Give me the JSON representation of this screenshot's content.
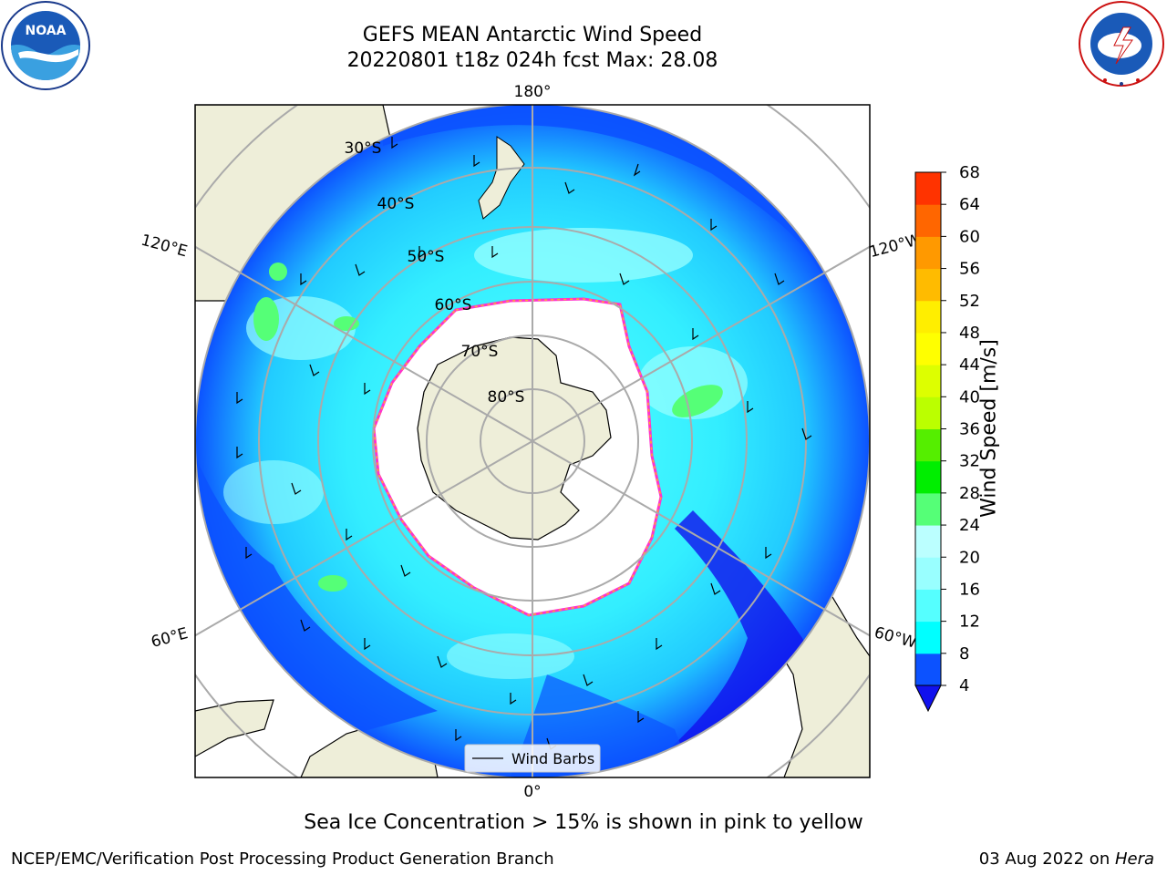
{
  "title": {
    "line1": "GEFS MEAN Antarctic Wind Speed",
    "line2": "20220801 t18z 024h fcst   Max: 28.08"
  },
  "logos": {
    "left": {
      "icon": "noaa-logo-icon",
      "text": "NOAA",
      "ring_text": "NATIONAL OCEANIC AND ATMOSPHERIC ADMINISTRATION · U.S. DEPARTMENT OF COMMERCE"
    },
    "right": {
      "icon": "nws-logo-icon",
      "ring_text": "NATIONAL WEATHER SERVICE"
    }
  },
  "map": {
    "projection": "south-polar-stereographic",
    "lon_labels": {
      "top": "180°",
      "bottom": "0°",
      "upper_left": "120°E",
      "upper_right": "120°W",
      "lower_left": "60°E",
      "lower_right": "60°W"
    },
    "lat_labels": [
      "30°S",
      "40°S",
      "50°S",
      "60°S",
      "70°S",
      "80°S"
    ],
    "legend_label": "Wind Barbs",
    "colors": {
      "land": "#eeeed9",
      "antarctica_ice": "#ffffff",
      "sea_ice_edge": [
        "#ff33cc",
        "#ffaa33",
        "#ffee55"
      ]
    }
  },
  "colorbar": {
    "label": "Wind Speed [m/s]",
    "ticks": [
      "4",
      "8",
      "12",
      "16",
      "20",
      "24",
      "28",
      "32",
      "36",
      "40",
      "44",
      "48",
      "52",
      "56",
      "60",
      "64",
      "68"
    ],
    "colors": [
      "#0c52ff",
      "#00ffff",
      "#55ffff",
      "#99ffff",
      "#bbffff",
      "#55ff77",
      "#00ee00",
      "#55ee00",
      "#bbff00",
      "#ddff00",
      "#ffff00",
      "#ffee00",
      "#ffbb00",
      "#ff9900",
      "#ff6600",
      "#ff3300",
      "#ff0000"
    ],
    "extend_color": "#1111ee"
  },
  "subtitle": "Sea Ice Concentration > 15% is shown in pink to yellow",
  "footer": {
    "left": "NCEP/EMC/Verification Post Processing Product Generation Branch",
    "right_date": "03 Aug 2022 on ",
    "right_host": "Hera"
  }
}
